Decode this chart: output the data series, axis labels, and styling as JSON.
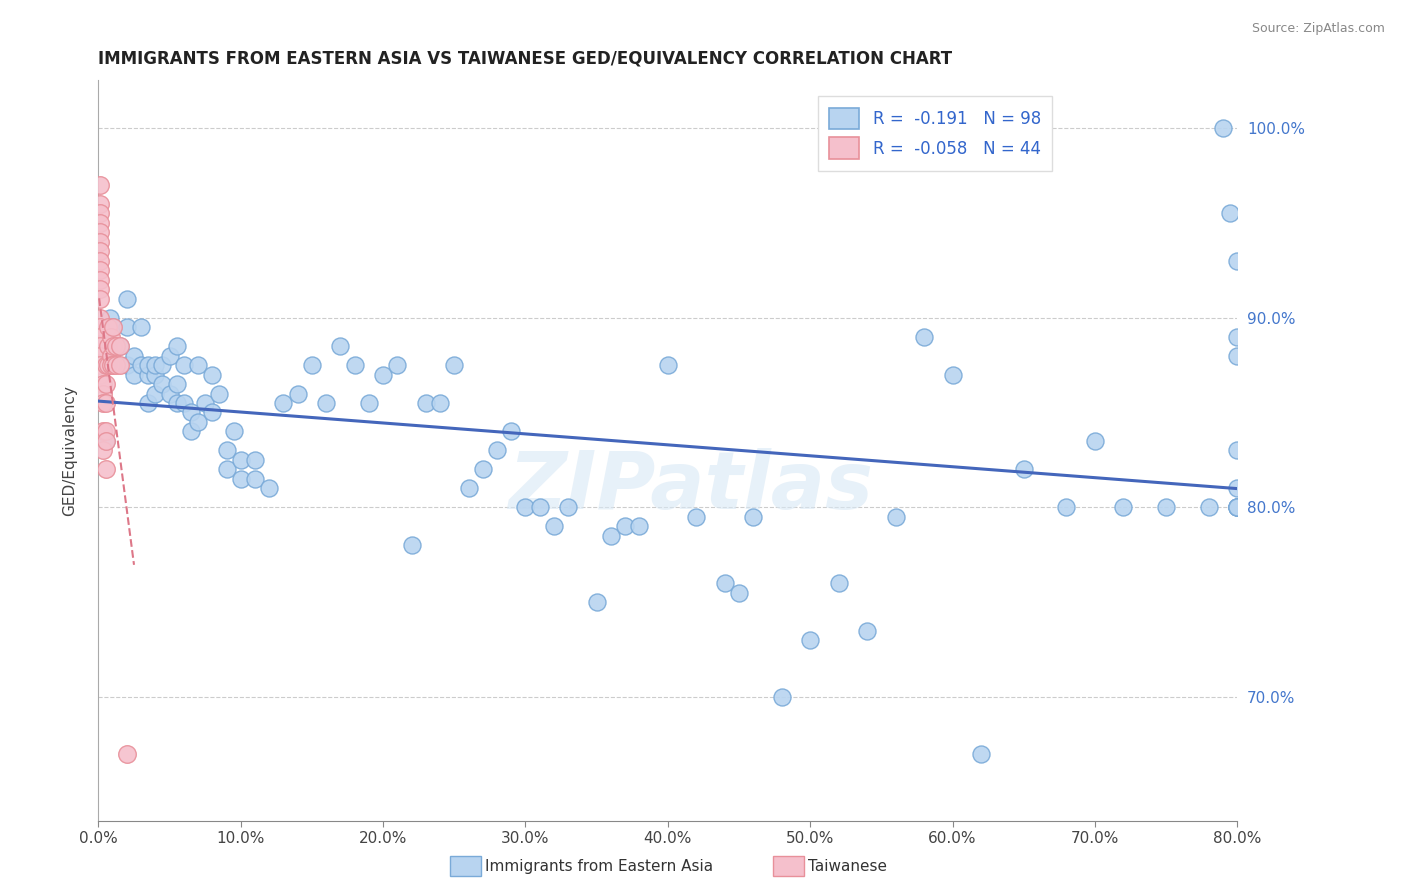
{
  "title": "IMMIGRANTS FROM EASTERN ASIA VS TAIWANESE GED/EQUIVALENCY CORRELATION CHART",
  "source_text": "Source: ZipAtlas.com",
  "ylabel": "GED/Equivalency",
  "legend_labels": [
    "Immigrants from Eastern Asia",
    "Taiwanese"
  ],
  "r_values": [
    -0.191,
    -0.058
  ],
  "n_values": [
    98,
    44
  ],
  "blue_color": "#b8d4f0",
  "blue_edge": "#7aaad8",
  "pink_color": "#f5c0cc",
  "pink_edge": "#e8909a",
  "trend_blue": "#4466bb",
  "trend_pink": "#dd7788",
  "xmin": 0.0,
  "xmax": 0.8,
  "ymin": 0.635,
  "ymax": 1.025,
  "yticks": [
    0.7,
    0.8,
    0.9,
    1.0
  ],
  "xticks": [
    0.0,
    0.1,
    0.2,
    0.3,
    0.4,
    0.5,
    0.6,
    0.7,
    0.8
  ],
  "blue_x": [
    0.005,
    0.008,
    0.01,
    0.015,
    0.02,
    0.02,
    0.02,
    0.025,
    0.025,
    0.03,
    0.03,
    0.035,
    0.035,
    0.035,
    0.04,
    0.04,
    0.04,
    0.045,
    0.045,
    0.05,
    0.05,
    0.055,
    0.055,
    0.055,
    0.06,
    0.06,
    0.065,
    0.065,
    0.07,
    0.07,
    0.075,
    0.08,
    0.08,
    0.085,
    0.09,
    0.09,
    0.095,
    0.1,
    0.1,
    0.11,
    0.11,
    0.12,
    0.13,
    0.14,
    0.15,
    0.16,
    0.17,
    0.18,
    0.19,
    0.2,
    0.21,
    0.22,
    0.23,
    0.24,
    0.25,
    0.26,
    0.27,
    0.28,
    0.29,
    0.3,
    0.31,
    0.32,
    0.33,
    0.35,
    0.36,
    0.37,
    0.38,
    0.4,
    0.42,
    0.44,
    0.45,
    0.46,
    0.48,
    0.5,
    0.52,
    0.54,
    0.56,
    0.58,
    0.6,
    0.62,
    0.65,
    0.68,
    0.7,
    0.72,
    0.75,
    0.78,
    0.79,
    0.795,
    0.8,
    0.8,
    0.8,
    0.8,
    0.8,
    0.8,
    0.8,
    0.8,
    0.8,
    0.8
  ],
  "blue_y": [
    0.835,
    0.9,
    0.895,
    0.885,
    0.875,
    0.895,
    0.91,
    0.87,
    0.88,
    0.875,
    0.895,
    0.855,
    0.87,
    0.875,
    0.86,
    0.87,
    0.875,
    0.865,
    0.875,
    0.86,
    0.88,
    0.855,
    0.865,
    0.885,
    0.855,
    0.875,
    0.84,
    0.85,
    0.845,
    0.875,
    0.855,
    0.85,
    0.87,
    0.86,
    0.82,
    0.83,
    0.84,
    0.815,
    0.825,
    0.815,
    0.825,
    0.81,
    0.855,
    0.86,
    0.875,
    0.855,
    0.885,
    0.875,
    0.855,
    0.87,
    0.875,
    0.78,
    0.855,
    0.855,
    0.875,
    0.81,
    0.82,
    0.83,
    0.84,
    0.8,
    0.8,
    0.79,
    0.8,
    0.75,
    0.785,
    0.79,
    0.79,
    0.875,
    0.795,
    0.76,
    0.755,
    0.795,
    0.7,
    0.73,
    0.76,
    0.735,
    0.795,
    0.89,
    0.87,
    0.67,
    0.82,
    0.8,
    0.835,
    0.8,
    0.8,
    0.8,
    1.0,
    0.955,
    0.93,
    0.89,
    0.88,
    0.83,
    0.81,
    0.8,
    0.8,
    0.8,
    0.8,
    0.8
  ],
  "pink_x": [
    0.001,
    0.001,
    0.001,
    0.001,
    0.001,
    0.001,
    0.001,
    0.001,
    0.001,
    0.001,
    0.001,
    0.001,
    0.001,
    0.001,
    0.001,
    0.001,
    0.001,
    0.001,
    0.001,
    0.003,
    0.003,
    0.003,
    0.003,
    0.003,
    0.005,
    0.005,
    0.005,
    0.005,
    0.005,
    0.005,
    0.007,
    0.007,
    0.007,
    0.009,
    0.009,
    0.009,
    0.01,
    0.01,
    0.01,
    0.012,
    0.012,
    0.015,
    0.015,
    0.02
  ],
  "pink_y": [
    0.97,
    0.96,
    0.955,
    0.95,
    0.945,
    0.94,
    0.935,
    0.93,
    0.925,
    0.92,
    0.915,
    0.91,
    0.9,
    0.895,
    0.89,
    0.885,
    0.88,
    0.875,
    0.87,
    0.865,
    0.86,
    0.855,
    0.84,
    0.83,
    0.875,
    0.865,
    0.855,
    0.84,
    0.835,
    0.82,
    0.895,
    0.885,
    0.875,
    0.89,
    0.88,
    0.875,
    0.895,
    0.885,
    0.875,
    0.885,
    0.875,
    0.885,
    0.875,
    0.67
  ],
  "watermark": "ZIPatlas",
  "background_color": "#ffffff",
  "grid_color": "#cccccc",
  "grid_style": "--"
}
